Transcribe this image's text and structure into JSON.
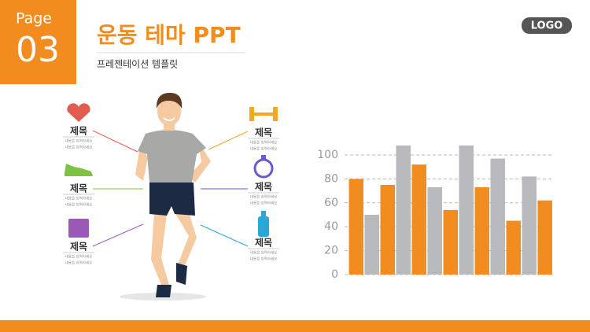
{
  "header": {
    "page_label": "Page",
    "page_number": "03",
    "title": "운동 테마 PPT",
    "subtitle": "프레젠테이션 템플릿",
    "logo": "LOGO"
  },
  "items": [
    {
      "label": "제목",
      "lines": [
        "내용을 입력하세요",
        "내용을 입력하세요"
      ]
    },
    {
      "label": "제목",
      "lines": [
        "내용을 입력하세요",
        "내용을 입력하세요"
      ]
    },
    {
      "label": "제목",
      "lines": [
        "내용을 입력하세요",
        "내용을 입력하세요"
      ]
    },
    {
      "label": "제목",
      "lines": [
        "내용을 입력하세요",
        "내용을 입력하세요"
      ]
    },
    {
      "label": "제목",
      "lines": [
        "내용을 입력하세요",
        "내용을 입력하세요"
      ]
    },
    {
      "label": "제목",
      "lines": [
        "내용을 입력하세요",
        "내용을 입력하세요"
      ]
    }
  ],
  "chart_data": {
    "type": "bar",
    "categories": [
      null,
      null,
      null,
      null,
      null,
      null,
      null,
      null,
      null,
      null,
      null,
      null,
      null
    ],
    "values": [
      80,
      50,
      75,
      108,
      92,
      73,
      54,
      108,
      73,
      97,
      45,
      82,
      62
    ],
    "colors": [
      "#f28c1e",
      "#b8b9bd",
      "#f28c1e",
      "#b8b9bd",
      "#f28c1e",
      "#b8b9bd",
      "#f28c1e",
      "#b8b9bd",
      "#f28c1e",
      "#b8b9bd",
      "#f28c1e",
      "#b8b9bd",
      "#f28c1e"
    ],
    "ylim": [
      0,
      110
    ],
    "yticks": [
      0,
      20,
      40,
      60,
      80,
      100
    ],
    "grid": true
  }
}
